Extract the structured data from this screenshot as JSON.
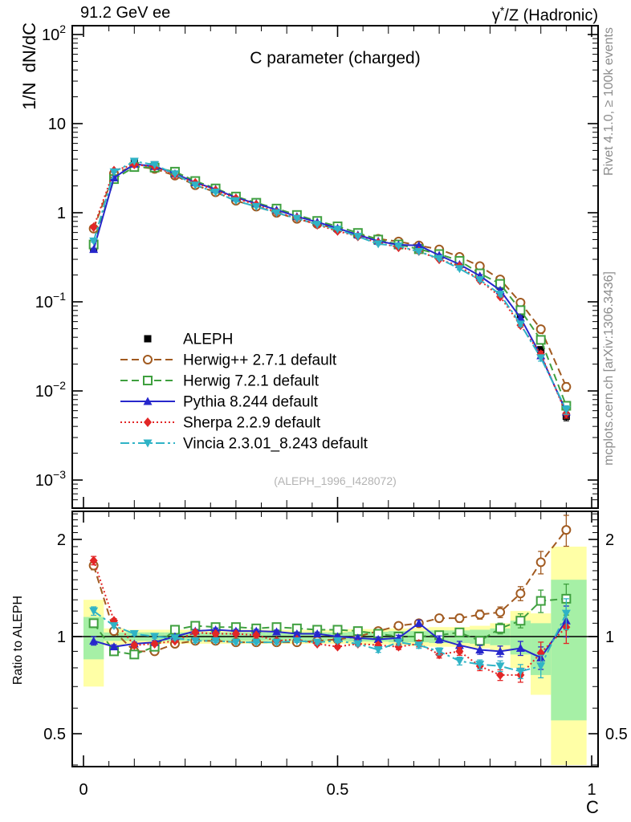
{
  "header": {
    "left": "91.2 GeV ee",
    "right_prefix": "γ",
    "right_sup": "*",
    "right_suffix": "/Z (Hadronic)"
  },
  "titles": {
    "plot_title": "C parameter (charged)",
    "ref": "(ALEPH_1996_I428072)",
    "x_axis": "C",
    "y_axis_main": "1/N  dN/dC",
    "y_axis_ratio": "Ratio to ALEPH",
    "watermark_top": "Rivet 4.1.0, ≥ 100k events",
    "watermark_bottom": "mcplots.cern.ch [arXiv:1306.3436]"
  },
  "colors": {
    "frame": "#000000",
    "band_yellow": "#ffffa6",
    "band_green": "#a6f0a6",
    "watermark": "#8c8c8c",
    "ref_text": "#b3b3b3",
    "aleph": "#000000",
    "herwigpp": "#a15a20",
    "herwig7": "#3fa03f",
    "pythia": "#2727cc",
    "sherpa": "#e22626",
    "vincia": "#2fb3c6"
  },
  "chart_data": {
    "type": "line",
    "title": "C parameter (charged)",
    "xlabel": "C",
    "ylabel": "1/N dN/dC",
    "ylabel_ratio": "Ratio to ALEPH",
    "x_range": [
      0,
      1
    ],
    "y_range_main": [
      0.00048,
      130
    ],
    "y_range_ratio": [
      0.39,
      2.45
    ],
    "ylog_main": true,
    "ylog_ratio": true,
    "x": [
      0.02,
      0.06,
      0.1,
      0.14,
      0.18,
      0.22,
      0.26,
      0.3,
      0.34,
      0.38,
      0.42,
      0.46,
      0.5,
      0.54,
      0.58,
      0.62,
      0.66,
      0.7,
      0.74,
      0.78,
      0.82,
      0.86,
      0.9,
      0.95
    ],
    "bin_edges": [
      0,
      0.04,
      0.08,
      0.12,
      0.16,
      0.2,
      0.24,
      0.28,
      0.32,
      0.36,
      0.4,
      0.44,
      0.48,
      0.52,
      0.56,
      0.6,
      0.64,
      0.68,
      0.72,
      0.76,
      0.8,
      0.84,
      0.88,
      0.92,
      0.99
    ],
    "err_rel": [
      0.03,
      0.015,
      0.012,
      0.012,
      0.012,
      0.012,
      0.012,
      0.012,
      0.012,
      0.012,
      0.012,
      0.012,
      0.012,
      0.015,
      0.018,
      0.02,
      0.022,
      0.025,
      0.028,
      0.032,
      0.038,
      0.05,
      0.08,
      0.11
    ],
    "series": [
      {
        "key": "aleph",
        "name": "ALEPH",
        "color": "#000000",
        "marker": "square-filled",
        "line": "none",
        "dash": "",
        "values": [
          0.4,
          2.65,
          3.7,
          3.45,
          2.75,
          2.1,
          1.75,
          1.42,
          1.22,
          1.04,
          0.89,
          0.77,
          0.67,
          0.57,
          0.49,
          0.44,
          0.39,
          0.34,
          0.28,
          0.215,
          0.15,
          0.072,
          0.029,
          0.0052
        ]
      },
      {
        "key": "herwigpp",
        "name": "Herwig++ 2.7.1 default",
        "color": "#a15a20",
        "marker": "circle-open",
        "line": "dashed",
        "dash": "9,5",
        "ratio": [
          1.66,
          1.04,
          0.9,
          0.9,
          0.95,
          0.97,
          0.97,
          0.96,
          0.96,
          0.96,
          0.96,
          0.97,
          0.98,
          1.0,
          1.04,
          1.08,
          1.1,
          1.14,
          1.14,
          1.17,
          1.19,
          1.36,
          1.7,
          2.14
        ]
      },
      {
        "key": "herwig7",
        "name": "Herwig 7.2.1 default",
        "color": "#3fa03f",
        "marker": "square-open",
        "line": "dashed",
        "dash": "9,5",
        "ratio": [
          1.1,
          0.9,
          0.88,
          0.93,
          1.05,
          1.08,
          1.07,
          1.07,
          1.06,
          1.07,
          1.06,
          1.05,
          1.05,
          1.04,
          1.02,
          1.0,
          1.0,
          1.01,
          1.03,
          0.97,
          1.06,
          1.12,
          1.29,
          1.31
        ]
      },
      {
        "key": "pythia",
        "name": "Pythia 8.244 default",
        "color": "#2727cc",
        "marker": "triangle-up",
        "line": "solid",
        "dash": "",
        "ratio": [
          0.97,
          0.93,
          0.95,
          0.96,
          1.0,
          1.04,
          1.05,
          1.04,
          1.04,
          1.035,
          1.02,
          1.02,
          1.0,
          0.99,
          0.98,
          0.99,
          1.1,
          0.98,
          0.94,
          0.91,
          0.9,
          0.92,
          0.86,
          1.12
        ]
      },
      {
        "key": "sherpa",
        "name": "Sherpa 2.2.9 default",
        "color": "#e22626",
        "marker": "diamond-filled",
        "line": "dotted",
        "dash": "2,3",
        "ratio": [
          1.72,
          1.12,
          0.94,
          0.95,
          0.97,
          1.03,
          1.02,
          1.02,
          1.01,
          0.97,
          0.98,
          0.95,
          0.93,
          0.95,
          0.94,
          0.93,
          0.95,
          0.88,
          0.9,
          0.81,
          0.76,
          0.76,
          0.89,
          1.07
        ]
      },
      {
        "key": "vincia",
        "name": "Vincia 2.3.01_8.243 default",
        "color": "#2fb3c6",
        "marker": "triangle-down",
        "line": "dashdot",
        "dash": "11,4,3,4",
        "ratio": [
          1.2,
          1.08,
          1.02,
          1.0,
          0.99,
          0.97,
          0.97,
          0.96,
          0.96,
          0.96,
          0.97,
          0.96,
          0.97,
          0.95,
          0.91,
          0.96,
          0.94,
          0.9,
          0.84,
          0.82,
          0.81,
          0.78,
          0.81,
          1.18
        ]
      }
    ],
    "bands_per_bin": [
      [
        0.7,
        1.3,
        0.85,
        1.15
      ],
      [
        0.94,
        1.06,
        0.97,
        1.03
      ],
      [
        0.95,
        1.05,
        0.97,
        1.03
      ],
      [
        0.95,
        1.05,
        0.97,
        1.03
      ],
      [
        0.95,
        1.05,
        0.97,
        1.03
      ],
      [
        0.95,
        1.05,
        0.97,
        1.03
      ],
      [
        0.95,
        1.05,
        0.97,
        1.03
      ],
      [
        0.95,
        1.05,
        0.97,
        1.03
      ],
      [
        0.95,
        1.05,
        0.97,
        1.03
      ],
      [
        0.95,
        1.05,
        0.97,
        1.03
      ],
      [
        0.95,
        1.05,
        0.97,
        1.03
      ],
      [
        0.95,
        1.05,
        0.97,
        1.03
      ],
      [
        0.95,
        1.05,
        0.97,
        1.03
      ],
      [
        0.945,
        1.055,
        0.965,
        1.035
      ],
      [
        0.945,
        1.055,
        0.965,
        1.035
      ],
      [
        0.94,
        1.06,
        0.96,
        1.04
      ],
      [
        0.935,
        1.065,
        0.96,
        1.04
      ],
      [
        0.93,
        1.07,
        0.955,
        1.045
      ],
      [
        0.93,
        1.07,
        0.955,
        1.045
      ],
      [
        0.92,
        1.08,
        0.95,
        1.05
      ],
      [
        0.9,
        1.1,
        0.94,
        1.06
      ],
      [
        0.8,
        1.2,
        0.88,
        1.12
      ],
      [
        0.66,
        1.18,
        0.76,
        1.1
      ],
      [
        0.4,
        1.9,
        0.55,
        1.5
      ]
    ],
    "axes": {
      "y_ticks_main": [
        {
          "v": 100,
          "base": "10",
          "exp": "2"
        },
        {
          "v": 10,
          "base": "10",
          "exp": ""
        },
        {
          "v": 1,
          "base": "1",
          "exp": ""
        },
        {
          "v": 0.1,
          "base": "10",
          "exp": "−1"
        },
        {
          "v": 0.01,
          "base": "10",
          "exp": "−2"
        },
        {
          "v": 0.001,
          "base": "10",
          "exp": "−3"
        }
      ],
      "y_ticks_ratio": [
        {
          "v": 2,
          "label": "2"
        },
        {
          "v": 1,
          "label": "1"
        },
        {
          "v": 0.5,
          "label": "0.5"
        }
      ],
      "x_ticks": [
        {
          "v": 0,
          "label": "0"
        },
        {
          "v": 0.5,
          "label": "0.5"
        },
        {
          "v": 1,
          "label": "1"
        }
      ]
    },
    "legend_position": "center-left"
  }
}
